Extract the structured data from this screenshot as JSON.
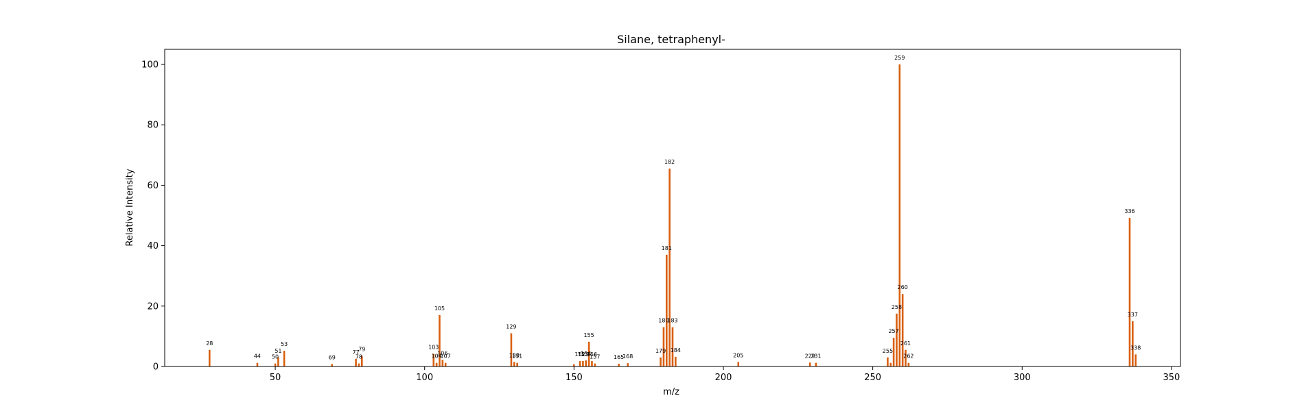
{
  "chart_data": {
    "type": "bar",
    "title": "Silane, tetraphenyl-",
    "xlabel": "m/z",
    "ylabel": "Relative Intensity",
    "xlim": [
      13,
      353
    ],
    "ylim": [
      0,
      105
    ],
    "xticks": [
      50,
      100,
      150,
      200,
      250,
      300,
      350
    ],
    "yticks": [
      0,
      20,
      40,
      60,
      80,
      100
    ],
    "bar_color": "#d95f0e",
    "grid": false,
    "legend": "none",
    "peaks": [
      {
        "mz": 28,
        "intensity": 5.5,
        "label": "28"
      },
      {
        "mz": 44,
        "intensity": 1.2,
        "label": "44"
      },
      {
        "mz": 50,
        "intensity": 1.0,
        "label": "50"
      },
      {
        "mz": 51,
        "intensity": 3.0,
        "label": "51"
      },
      {
        "mz": 53,
        "intensity": 5.2,
        "label": "53"
      },
      {
        "mz": 69,
        "intensity": 0.8,
        "label": "69"
      },
      {
        "mz": 77,
        "intensity": 2.5,
        "label": "77"
      },
      {
        "mz": 78,
        "intensity": 1.0,
        "label": "78"
      },
      {
        "mz": 79,
        "intensity": 3.5,
        "label": "79"
      },
      {
        "mz": 103,
        "intensity": 4.2,
        "label": "103"
      },
      {
        "mz": 104,
        "intensity": 1.2,
        "label": "104"
      },
      {
        "mz": 105,
        "intensity": 17.0,
        "label": "105"
      },
      {
        "mz": 106,
        "intensity": 2.2,
        "label": "106"
      },
      {
        "mz": 107,
        "intensity": 1.2,
        "label": "107"
      },
      {
        "mz": 129,
        "intensity": 11.0,
        "label": "129"
      },
      {
        "mz": 130,
        "intensity": 1.5,
        "label": "130"
      },
      {
        "mz": 131,
        "intensity": 1.2,
        "label": "131"
      },
      {
        "mz": 150,
        "intensity": 0.7,
        "label": ""
      },
      {
        "mz": 152,
        "intensity": 1.8,
        "label": "152"
      },
      {
        "mz": 153,
        "intensity": 1.8,
        "label": "153"
      },
      {
        "mz": 154,
        "intensity": 2.0,
        "label": "154"
      },
      {
        "mz": 155,
        "intensity": 8.2,
        "label": "155"
      },
      {
        "mz": 156,
        "intensity": 1.8,
        "label": "156"
      },
      {
        "mz": 157,
        "intensity": 1.0,
        "label": "157"
      },
      {
        "mz": 165,
        "intensity": 0.9,
        "label": "165"
      },
      {
        "mz": 168,
        "intensity": 1.1,
        "label": "168"
      },
      {
        "mz": 179,
        "intensity": 3.0,
        "label": "179"
      },
      {
        "mz": 180,
        "intensity": 13.0,
        "label": "180"
      },
      {
        "mz": 181,
        "intensity": 37.0,
        "label": "181"
      },
      {
        "mz": 182,
        "intensity": 65.5,
        "label": "182"
      },
      {
        "mz": 183,
        "intensity": 13.0,
        "label": "183"
      },
      {
        "mz": 184,
        "intensity": 3.2,
        "label": "184"
      },
      {
        "mz": 205,
        "intensity": 1.5,
        "label": "205"
      },
      {
        "mz": 229,
        "intensity": 1.3,
        "label": "229"
      },
      {
        "mz": 231,
        "intensity": 1.2,
        "label": "231"
      },
      {
        "mz": 255,
        "intensity": 3.0,
        "label": "255"
      },
      {
        "mz": 256,
        "intensity": 1.2,
        "label": ""
      },
      {
        "mz": 257,
        "intensity": 9.5,
        "label": "257"
      },
      {
        "mz": 258,
        "intensity": 17.5,
        "label": "258"
      },
      {
        "mz": 259,
        "intensity": 100.0,
        "label": "259"
      },
      {
        "mz": 260,
        "intensity": 24.0,
        "label": "260"
      },
      {
        "mz": 261,
        "intensity": 5.5,
        "label": "261"
      },
      {
        "mz": 262,
        "intensity": 1.2,
        "label": "262"
      },
      {
        "mz": 336,
        "intensity": 49.2,
        "label": "336"
      },
      {
        "mz": 337,
        "intensity": 15.0,
        "label": "337"
      },
      {
        "mz": 338,
        "intensity": 4.0,
        "label": "338"
      }
    ]
  }
}
